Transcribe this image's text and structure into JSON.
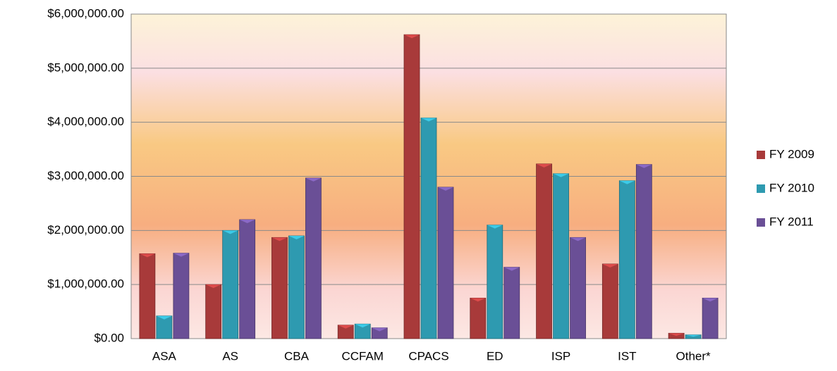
{
  "chart_data": {
    "type": "bar",
    "categories": [
      "ASA",
      "AS",
      "CBA",
      "CCFAM",
      "CPACS",
      "ED",
      "ISP",
      "IST",
      "Other*"
    ],
    "series": [
      {
        "name": "FY 2009",
        "color": "#a83a3a",
        "values": [
          1570000,
          1000000,
          1870000,
          250000,
          5620000,
          750000,
          3230000,
          1380000,
          100000
        ]
      },
      {
        "name": "FY 2010",
        "color": "#2e9ab0",
        "values": [
          420000,
          2000000,
          1900000,
          270000,
          4080000,
          2100000,
          3050000,
          2920000,
          70000
        ]
      },
      {
        "name": "FY 2011",
        "color": "#6a4f96",
        "values": [
          1580000,
          2200000,
          2970000,
          200000,
          2800000,
          1320000,
          1870000,
          3220000,
          750000
        ]
      }
    ],
    "ylim": [
      0,
      6000000
    ],
    "yticks": [
      {
        "value": 0,
        "label": "$0.00"
      },
      {
        "value": 1000000,
        "label": "$1,000,000.00"
      },
      {
        "value": 2000000,
        "label": "$2,000,000.00"
      },
      {
        "value": 3000000,
        "label": "$3,000,000.00"
      },
      {
        "value": 4000000,
        "label": "$4,000,000.00"
      },
      {
        "value": 5000000,
        "label": "$5,000,000.00"
      },
      {
        "value": 6000000,
        "label": "$6,000,000.00"
      }
    ],
    "grid": true,
    "legend": "right"
  }
}
